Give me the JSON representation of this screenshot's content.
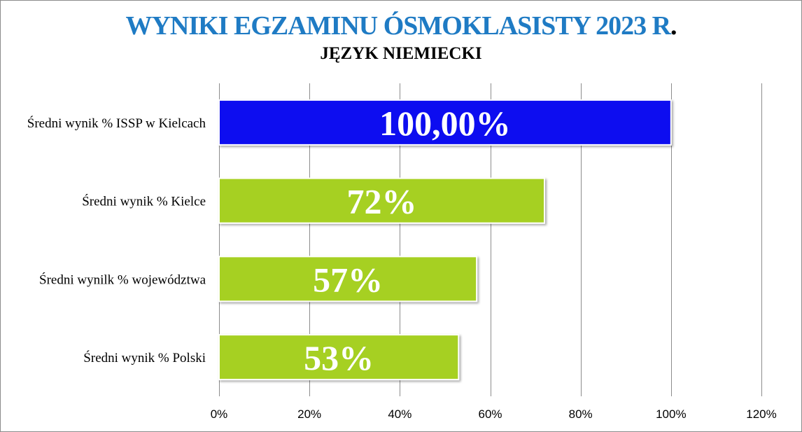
{
  "chart_data": {
    "type": "bar",
    "orientation": "horizontal",
    "title": "WYNIKI EGZAMINU ÓSMOKLASISTY 2023 R",
    "title_suffix": ".",
    "subtitle": "JĘZYK NIEMIECKI",
    "categories": [
      "Średni wynik % ISSP w Kielcach",
      "Średni wynik % Kielce",
      "Średni wynilk % województwa",
      "Średni wynik % Polski"
    ],
    "values": [
      100,
      72,
      57,
      53
    ],
    "data_labels": [
      "100,00%",
      "72%",
      "57%",
      "53%"
    ],
    "bar_colors": [
      "#0a0af0",
      "#a6d022",
      "#a6d022",
      "#a6d022"
    ],
    "xlim": [
      0,
      120
    ],
    "xticks": [
      0,
      20,
      40,
      60,
      80,
      100,
      120
    ],
    "xtick_labels": [
      "0%",
      "20%",
      "40%",
      "60%",
      "80%",
      "100%",
      "120%"
    ],
    "grid": true,
    "xlabel": "",
    "ylabel": ""
  },
  "colors": {
    "title": "#1f7bc4",
    "subtitle": "#000000",
    "grid": "#8c8c8c",
    "data_label": "#ffffff"
  }
}
